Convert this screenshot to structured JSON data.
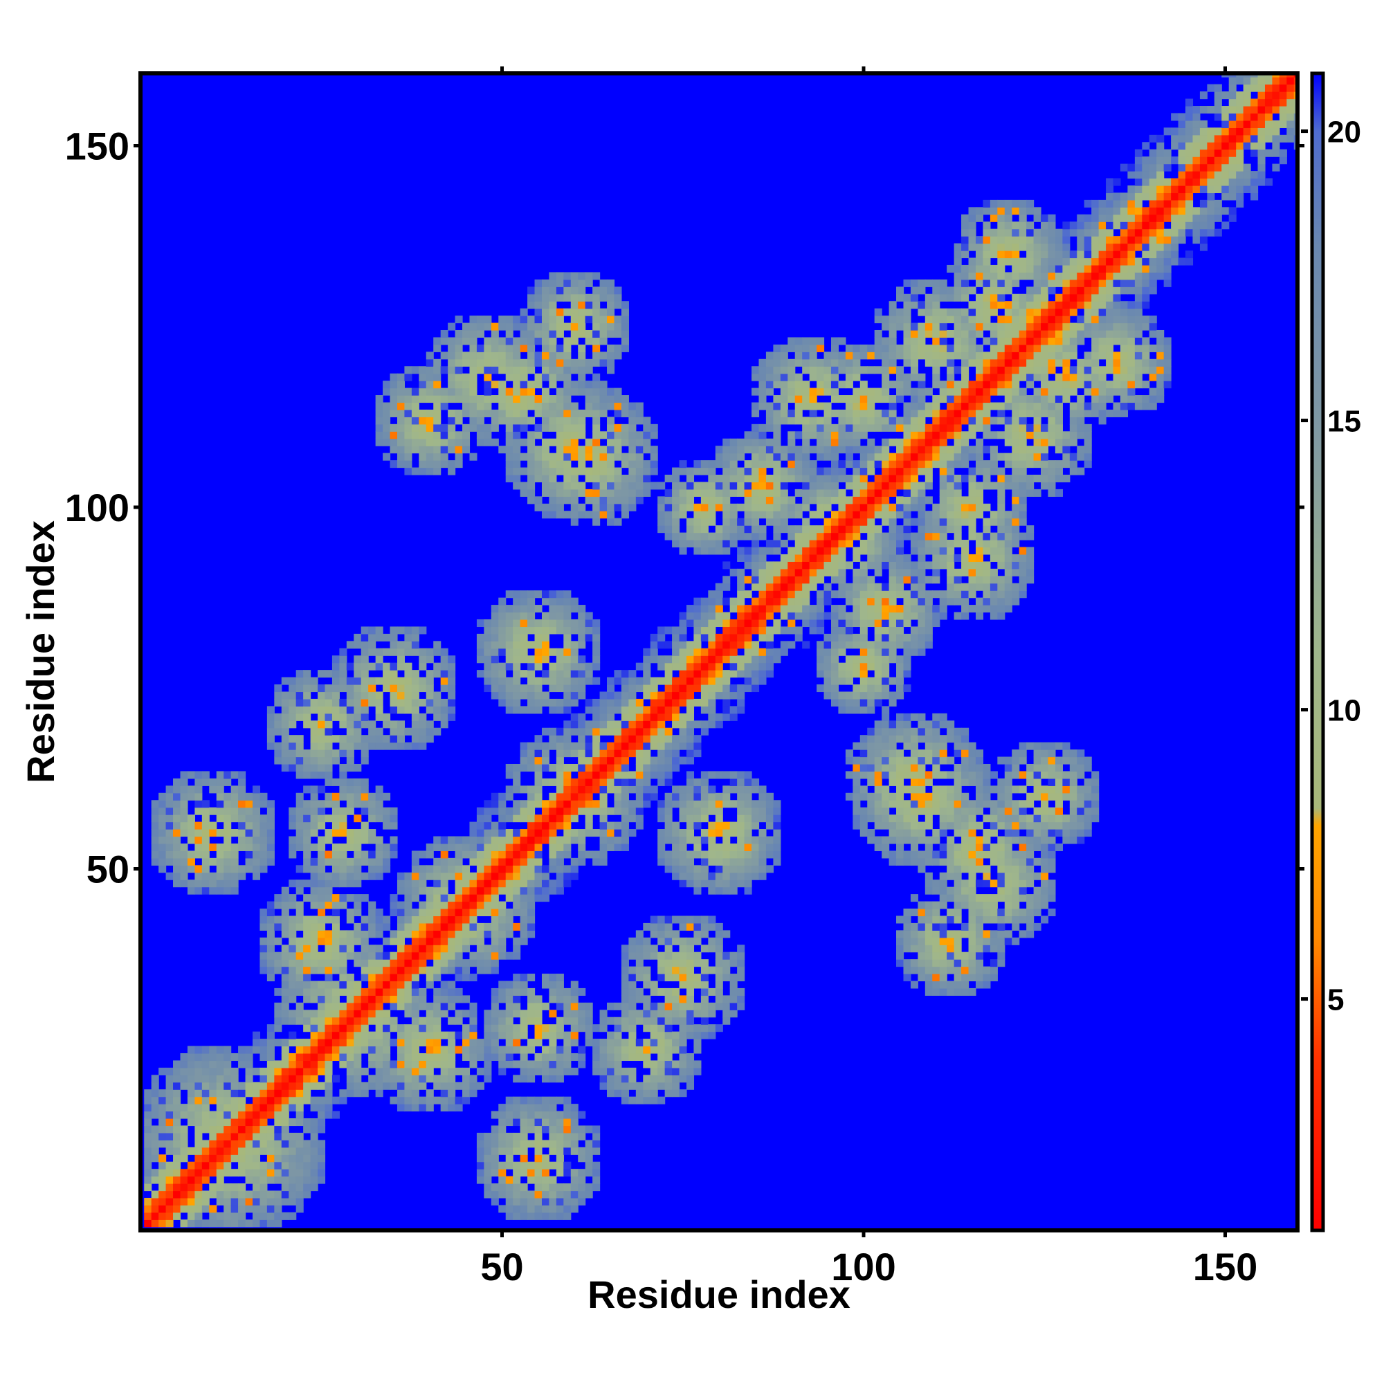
{
  "chart_data": {
    "type": "heatmap",
    "title": "",
    "xlabel": "Residue index",
    "ylabel": "Residue index",
    "n_residues": 160,
    "xlim": [
      1,
      160
    ],
    "ylim": [
      1,
      160
    ],
    "x_ticks": [
      50,
      100,
      150
    ],
    "y_ticks": [
      50,
      100,
      150
    ],
    "colorbar": {
      "range": [
        1,
        21
      ],
      "ticks": [
        5,
        10,
        15,
        20
      ],
      "colormap": [
        {
          "value": 1,
          "color": "#ff0000"
        },
        {
          "value": 4,
          "color": "#ff3300"
        },
        {
          "value": 6,
          "color": "#ff8800"
        },
        {
          "value": 8,
          "color": "#ffa500"
        },
        {
          "value": 8.3,
          "color": "#a8b87a"
        },
        {
          "value": 11,
          "color": "#9fb68c"
        },
        {
          "value": 15,
          "color": "#7f98a4"
        },
        {
          "value": 18,
          "color": "#6a88b0"
        },
        {
          "value": 20,
          "color": "#4f6cd0"
        },
        {
          "value": 21,
          "color": "#0000ff"
        }
      ]
    },
    "symmetric": true,
    "diagonal": "close contacts (red) along the main diagonal",
    "contact_blocks": [
      {
        "i": [
          1,
          70
        ],
        "j": [
          1,
          70
        ],
        "level": "near-diagonal band, dense mid/low distances"
      },
      {
        "i": [
          1,
          25
        ],
        "j": [
          50,
          62
        ],
        "level": "off-diagonal contact region"
      },
      {
        "i": [
          20,
          45
        ],
        "j": [
          55,
          90
        ],
        "level": "off-diagonal contact region"
      },
      {
        "i": [
          40,
          70
        ],
        "j": [
          80,
          135
        ],
        "level": "large off-diagonal contact region"
      },
      {
        "i": [
          65,
          95
        ],
        "j": [
          100,
          120
        ],
        "level": "off-diagonal contact region"
      },
      {
        "i": [
          95,
          140
        ],
        "j": [
          90,
          140
        ],
        "level": "near-diagonal cluster"
      },
      {
        "i": [
          100,
          135
        ],
        "j": [
          40,
          70
        ],
        "level": "off-diagonal contact region"
      },
      {
        "i": [
          110,
          160
        ],
        "j": [
          110,
          160
        ],
        "level": "near-diagonal band"
      }
    ]
  }
}
